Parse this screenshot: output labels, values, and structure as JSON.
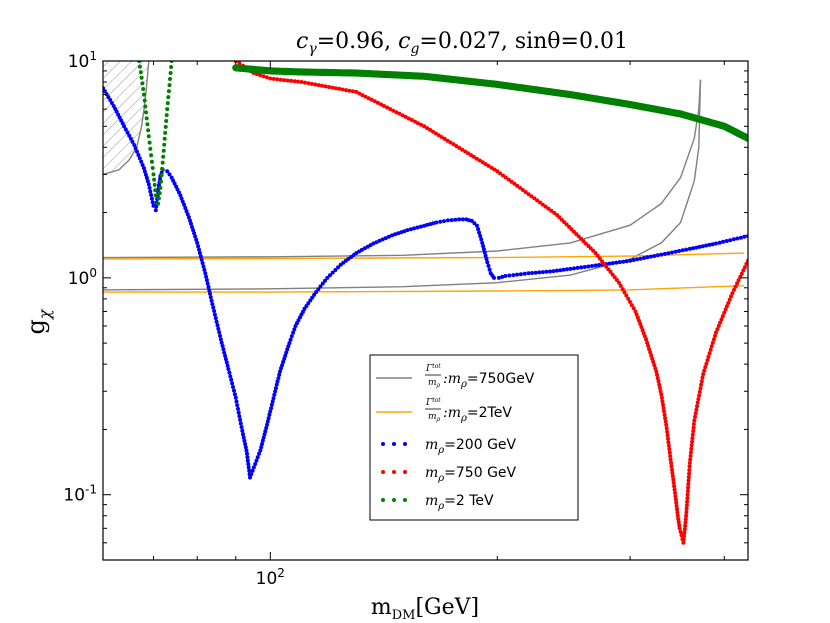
{
  "chart_data": {
    "type": "scatter",
    "title": "c_γ=0.96, c_g=0.027, sinθ=0.01",
    "title_parts": {
      "c_gamma": "c",
      "c_gamma_sub": "γ",
      "c_gamma_val": "=0.96, ",
      "c_g": "c",
      "c_g_sub": "g",
      "c_g_val": "=0.027, ",
      "sin_theta": "sinθ=0.01"
    },
    "xlabel": "m_DM[GeV]",
    "xlabel_parts": {
      "main": "m",
      "sub": "DM",
      "unit": "[GeV]"
    },
    "ylabel": "g_χ",
    "ylabel_parts": {
      "main": "g",
      "sub": "χ"
    },
    "xscale": "log",
    "yscale": "log",
    "xlim": [
      60,
      430
    ],
    "ylim": [
      0.05,
      10
    ],
    "xticks": [
      {
        "value": 100,
        "base": "10",
        "exp": "2"
      }
    ],
    "yticks": [
      {
        "value": 0.1,
        "base": "10",
        "exp": "-1"
      },
      {
        "value": 1,
        "base": "10",
        "exp": "0"
      },
      {
        "value": 10,
        "base": "10",
        "exp": "1"
      }
    ],
    "excluded_region": {
      "label": "hatched",
      "x_max": 67
    },
    "legend": {
      "location": "lower-center",
      "entries": [
        {
          "series": "width_750",
          "label_prefix": "Γ",
          "label_sup": "tot",
          "label_den": "m",
          "label_den_sub": "ρ",
          "label_text": ":m",
          "label_sub": "ρ",
          "label_val": "=750GeV"
        },
        {
          "series": "width_2000",
          "label_prefix": "Γ",
          "label_sup": "tot",
          "label_den": "m",
          "label_den_sub": "ρ",
          "label_text": ":m",
          "label_sub": "ρ",
          "label_val": "=2TeV"
        },
        {
          "series": "mrho_200",
          "label_text": "m",
          "label_sub": "ρ",
          "label_val": "=200 GeV"
        },
        {
          "series": "mrho_750",
          "label_text": "m",
          "label_sub": "ρ",
          "label_val": "=750 GeV"
        },
        {
          "series": "mrho_2000",
          "label_text": "m",
          "label_sub": "ρ",
          "label_val": "=2 TeV"
        }
      ]
    },
    "series": [
      {
        "name": "mrho_200",
        "label": "m_ρ=200 GeV",
        "kind": "points",
        "color": "#0000ff",
        "x": [
          60,
          62,
          64,
          66,
          68,
          69,
          70,
          70.5,
          71,
          71.5,
          72,
          73,
          74,
          76,
          78,
          80,
          82,
          84,
          86,
          88,
          90,
          91,
          92,
          93,
          94,
          97,
          99,
          103,
          106,
          108,
          111,
          115,
          119,
          124,
          130,
          137,
          145,
          152,
          160,
          166,
          172,
          178,
          182,
          185,
          188,
          191,
          194,
          196,
          198,
          201,
          205,
          210,
          220,
          235,
          250,
          270,
          300,
          330,
          360,
          390,
          430
        ],
        "y": [
          7.5,
          6.2,
          5.0,
          4.1,
          3.2,
          2.7,
          2.15,
          2.05,
          2.5,
          2.95,
          3.15,
          3.1,
          2.9,
          2.4,
          1.9,
          1.45,
          1.05,
          0.73,
          0.52,
          0.38,
          0.28,
          0.23,
          0.19,
          0.16,
          0.12,
          0.16,
          0.21,
          0.37,
          0.5,
          0.6,
          0.72,
          0.86,
          1.0,
          1.15,
          1.3,
          1.44,
          1.57,
          1.66,
          1.74,
          1.8,
          1.84,
          1.86,
          1.86,
          1.83,
          1.74,
          1.45,
          1.18,
          1.05,
          1.0,
          1.0,
          1.02,
          1.03,
          1.05,
          1.07,
          1.1,
          1.14,
          1.2,
          1.28,
          1.36,
          1.44,
          1.56
        ]
      },
      {
        "name": "mrho_750",
        "label": "m_ρ=750 GeV",
        "kind": "points",
        "color": "#ff0000",
        "x": [
          90,
          92,
          95,
          100,
          110,
          130,
          160,
          200,
          240,
          270,
          290,
          305,
          315,
          325,
          330,
          335,
          340,
          345,
          347,
          349,
          351,
          353,
          356,
          360,
          365,
          375,
          390,
          410,
          430
        ],
        "y": [
          10,
          9.5,
          8.8,
          8.3,
          8.0,
          7.2,
          5.0,
          3.1,
          1.95,
          1.3,
          0.95,
          0.7,
          0.52,
          0.37,
          0.29,
          0.21,
          0.14,
          0.095,
          0.08,
          0.07,
          0.065,
          0.06,
          0.08,
          0.14,
          0.22,
          0.36,
          0.56,
          0.85,
          1.2
        ]
      },
      {
        "name": "mrho_2000",
        "label": "m_ρ=2 TeV",
        "kind": "points",
        "color": "#008000",
        "x": [
          67,
          68,
          69,
          70,
          70.5,
          71,
          71.5,
          72,
          73,
          74,
          90,
          100,
          110,
          130,
          160,
          200,
          250,
          300,
          350,
          400,
          430
        ],
        "y": [
          10,
          7.0,
          4.5,
          3.0,
          2.4,
          2.2,
          2.6,
          3.4,
          6.0,
          10,
          9.3,
          9.0,
          8.9,
          8.8,
          8.5,
          7.8,
          7.0,
          6.3,
          5.7,
          5.0,
          4.4
        ]
      },
      {
        "name": "width_750",
        "label": "Γtot/mρ : mρ=750GeV",
        "kind": "line",
        "color": "#808080",
        "upper_x": [
          60,
          100,
          150,
          200,
          250,
          300,
          330,
          350,
          365,
          370,
          372
        ],
        "upper_y": [
          1.24,
          1.25,
          1.27,
          1.33,
          1.45,
          1.75,
          2.2,
          2.9,
          4.4,
          6.0,
          8.2
        ],
        "lower_x": [
          60,
          100,
          150,
          200,
          250,
          300,
          330,
          350,
          365,
          370,
          372
        ],
        "lower_y": [
          0.88,
          0.89,
          0.91,
          0.95,
          1.03,
          1.22,
          1.45,
          1.8,
          2.8,
          4.0,
          8.2
        ]
      },
      {
        "name": "width_2000",
        "label": "Γtot/mρ : mρ=2TeV",
        "kind": "line",
        "color": "#ffa500",
        "upper_x": [
          60,
          100,
          200,
          300,
          425
        ],
        "upper_y": [
          1.22,
          1.23,
          1.24,
          1.26,
          1.3
        ],
        "lower_x": [
          60,
          100,
          200,
          300,
          425
        ],
        "lower_y": [
          0.86,
          0.86,
          0.87,
          0.88,
          0.92
        ]
      },
      {
        "name": "gray_low_mass",
        "label": "",
        "kind": "line",
        "color": "#808080",
        "x": [
          60,
          63,
          65,
          66.5,
          67.5,
          68,
          68.5,
          69
        ],
        "y": [
          3.0,
          3.15,
          3.5,
          4.0,
          5.0,
          6.0,
          7.5,
          10
        ]
      }
    ]
  }
}
